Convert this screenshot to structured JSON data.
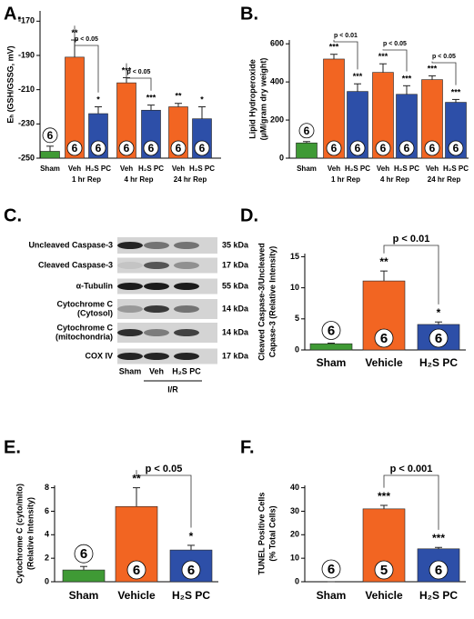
{
  "chart_data": [
    {
      "type": "bar",
      "panel": "A.",
      "ylabel": [
        "Eₕ (GSH/GSSG, mV)"
      ],
      "categories": [
        "Sham",
        "Veh",
        "H₂S PC",
        "Veh",
        "H₂S PC",
        "Veh",
        "H₂S PC"
      ],
      "groups": [
        "1 hr Rep",
        "4 hr Rep",
        "24 hr Rep"
      ],
      "values": [
        -246,
        -191,
        -224,
        -206,
        -222,
        -220,
        -227
      ],
      "errors": [
        3,
        10,
        4,
        3,
        3,
        2,
        7
      ],
      "colors": [
        "#3f9a35",
        "#f26522",
        "#2d4fa8",
        "#f26522",
        "#2d4fa8",
        "#f26522",
        "#2d4fa8"
      ],
      "n": [
        6,
        6,
        6,
        6,
        6,
        6,
        6
      ],
      "stars": [
        null,
        "**",
        "*",
        "***",
        "***",
        "**",
        "*"
      ],
      "brackets": [
        "p < 0.05",
        "p < 0.05"
      ],
      "ylim": [
        -250,
        -164
      ],
      "yticks": [
        -170,
        -190,
        -210,
        -230,
        -250
      ]
    },
    {
      "type": "bar",
      "panel": "B.",
      "ylabel": [
        "Lipid Hydroperoxide",
        "(µM/gram dry weight)"
      ],
      "categories": [
        "Sham",
        "Veh",
        "H₂S PC",
        "Veh",
        "H₂S PC",
        "Veh",
        "H₂S PC"
      ],
      "groups": [
        "1 hr Rep",
        "4 hr Rep",
        "24 hr Rep"
      ],
      "values": [
        80,
        520,
        350,
        450,
        335,
        412,
        293
      ],
      "errors": [
        7,
        25,
        40,
        45,
        45,
        20,
        15
      ],
      "colors": [
        "#3f9a35",
        "#f26522",
        "#2d4fa8",
        "#f26522",
        "#2d4fa8",
        "#f26522",
        "#2d4fa8"
      ],
      "n": [
        6,
        6,
        6,
        6,
        6,
        6,
        6
      ],
      "stars": [
        null,
        "***",
        "***",
        "***",
        "***",
        "***",
        "***"
      ],
      "brackets": [
        "p < 0.01",
        "p < 0.05",
        "p < 0.05"
      ],
      "ylim": [
        0,
        620
      ],
      "yticks": [
        0,
        200,
        400,
        600
      ]
    },
    {
      "type": "bar",
      "panel": "D.",
      "ylabel": [
        "Cleaved Caspase-3/Uncleaved",
        "Capase-3 (Relative Intensity)"
      ],
      "categories": [
        "Sham",
        "Vehicle",
        "H₂S PC"
      ],
      "values": [
        1.0,
        11.1,
        4.1
      ],
      "errors": [
        0.1,
        1.6,
        0.4
      ],
      "colors": [
        "#3f9a35",
        "#f26522",
        "#2d4fa8"
      ],
      "n": [
        6,
        6,
        6
      ],
      "stars": [
        null,
        "**",
        "*"
      ],
      "brackets": [
        "p < 0.01"
      ],
      "ylim": [
        0,
        15.5
      ],
      "yticks": [
        0,
        5,
        10,
        15
      ]
    },
    {
      "type": "bar",
      "panel": "E.",
      "ylabel": [
        "Cytochrome C (cyto/mito)",
        "(Relative Intensity)"
      ],
      "categories": [
        "Sham",
        "Vehicle",
        "H₂S PC"
      ],
      "values": [
        1.0,
        6.4,
        2.7
      ],
      "errors": [
        0.3,
        1.6,
        0.4
      ],
      "colors": [
        "#3f9a35",
        "#f26522",
        "#2d4fa8"
      ],
      "n": [
        6,
        6,
        6
      ],
      "stars": [
        null,
        "**",
        "*"
      ],
      "brackets": [
        "p < 0.05"
      ],
      "ylim": [
        0,
        8.2
      ],
      "yticks": [
        0,
        2,
        4,
        6,
        8
      ]
    },
    {
      "type": "bar",
      "panel": "F.",
      "ylabel": [
        "TUNEL Positive Cells",
        "(% Total Cells)"
      ],
      "categories": [
        "Sham",
        "Vehicle",
        "H₂S PC"
      ],
      "values": [
        0,
        31,
        14
      ],
      "errors": [
        0,
        1.5,
        0.6
      ],
      "colors": [
        "#3f9a35",
        "#f26522",
        "#2d4fa8"
      ],
      "n": [
        6,
        5,
        6
      ],
      "stars": [
        null,
        "***",
        "***"
      ],
      "brackets": [
        "p < 0.001"
      ],
      "ylim": [
        0,
        41
      ],
      "yticks": [
        0,
        10,
        20,
        30,
        40
      ]
    }
  ],
  "blot": {
    "panel": "C.",
    "rows": [
      {
        "label": [
          "Uncleaved Caspase-3"
        ],
        "kda": "35 kDa"
      },
      {
        "label": [
          "Cleaved Caspase-3"
        ],
        "kda": "17 kDa"
      },
      {
        "label": [
          "α-Tubulin"
        ],
        "kda": "55 kDa"
      },
      {
        "label": [
          "Cytochrome C",
          "(Cytosol)"
        ],
        "kda": "14 kDa"
      },
      {
        "label": [
          "Cytochrome C",
          "(mitochondria)"
        ],
        "kda": "14 kDa"
      },
      {
        "label": [
          "COX IV"
        ],
        "kda": "17 kDa"
      }
    ],
    "lanes": [
      "Sham",
      "Veh",
      "H₂S PC"
    ],
    "group": "I/R"
  }
}
